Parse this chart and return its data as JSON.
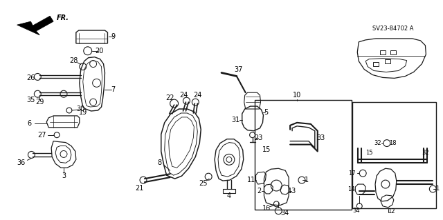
{
  "diagram_code": "SV23-84702 A",
  "background_color": "#ffffff",
  "fig_width": 6.4,
  "fig_height": 3.19,
  "dpi": 100,
  "line_color": "#1a1a1a",
  "label_fontsize": 7,
  "label_fontsize_sm": 6
}
